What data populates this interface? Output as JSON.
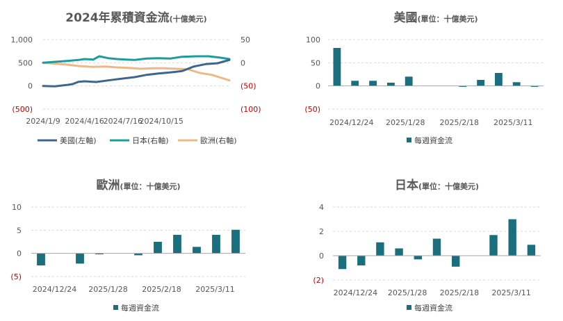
{
  "colors": {
    "us": "#3F6490",
    "jp": "#1C9C9A",
    "eu": "#EDB886",
    "bar": "#1A6E7E",
    "negative": "#C00000",
    "axis": "#555555",
    "grid": "#D9D9D9",
    "title": "#595959"
  },
  "chart_data": [
    {
      "type": "line",
      "title": "2024年累積資金流",
      "title_suffix": "(十億美元)",
      "left_axis": {
        "ylim": [
          -500,
          1000
        ],
        "ticks": [
          "1,000",
          "500",
          "0",
          "(500)"
        ],
        "tick_values": [
          1000,
          500,
          0,
          -500
        ]
      },
      "right_axis": {
        "ylim": [
          -100,
          50
        ],
        "ticks": [
          "50",
          "0",
          "(50)",
          "(100)"
        ],
        "tick_values": [
          50,
          0,
          -50,
          -100
        ]
      },
      "x_ticks": [
        "2024/1/9",
        "2024/4/16",
        "2024/7/16",
        "2024/10/15"
      ],
      "x_range": [
        "2024/1/9",
        "2025/3/25"
      ],
      "grid": "horizontal dashed",
      "legend": {
        "position": "bottom",
        "items": [
          "美國(左軸)",
          "日本(右軸)",
          "歐洲(右軸)"
        ]
      },
      "series": [
        {
          "name": "美國(左軸)",
          "axis": "left",
          "x": [
            "2024/1/9",
            "2024/2/6",
            "2024/3/5",
            "2024/3/19",
            "2024/4/2",
            "2024/4/16",
            "2024/5/14",
            "2024/6/11",
            "2024/7/16",
            "2024/8/13",
            "2024/9/10",
            "2024/10/8",
            "2024/11/5",
            "2024/12/3",
            "2024/12/31",
            "2025/1/28",
            "2025/2/25",
            "2025/3/25"
          ],
          "values": [
            0,
            -10,
            20,
            40,
            90,
            100,
            85,
            120,
            160,
            190,
            240,
            270,
            290,
            320,
            420,
            470,
            490,
            560
          ]
        },
        {
          "name": "日本(右軸)",
          "axis": "right",
          "x": [
            "2024/1/9",
            "2024/2/6",
            "2024/3/5",
            "2024/4/2",
            "2024/4/16",
            "2024/5/7",
            "2024/5/21",
            "2024/6/11",
            "2024/7/2",
            "2024/7/23",
            "2024/8/13",
            "2024/9/10",
            "2024/10/8",
            "2024/11/5",
            "2024/12/3",
            "2025/1/7",
            "2025/2/4",
            "2025/3/4",
            "2025/3/25"
          ],
          "values": [
            0,
            2,
            4,
            6,
            8,
            7,
            14,
            10,
            8,
            7,
            6,
            9,
            10,
            9,
            13,
            14,
            14,
            11,
            8
          ]
        },
        {
          "name": "歐洲(右軸)",
          "axis": "right",
          "x": [
            "2024/1/9",
            "2024/2/6",
            "2024/3/5",
            "2024/4/2",
            "2024/5/7",
            "2024/6/4",
            "2024/7/2",
            "2024/7/30",
            "2024/8/27",
            "2024/9/24",
            "2024/10/22",
            "2024/11/19",
            "2024/12/17",
            "2025/1/14",
            "2025/2/11",
            "2025/3/11",
            "2025/3/25"
          ],
          "values": [
            0,
            -2,
            -4,
            -7,
            -9,
            -8,
            -10,
            -11,
            -13,
            -12,
            -12,
            -13,
            -14,
            -22,
            -26,
            -34,
            -38
          ]
        }
      ]
    },
    {
      "type": "bar",
      "title": "美國",
      "title_suffix": "(單位：十億美元)",
      "ylim": [
        -50,
        100
      ],
      "y_ticks": [
        "100",
        "50",
        "0",
        "(50)"
      ],
      "y_tick_values": [
        100,
        50,
        0,
        -50
      ],
      "x_ticks": [
        "2024/12/24",
        "2025/1/28",
        "2025/2/18",
        "2025/3/11"
      ],
      "legend": {
        "position": "bottom",
        "items": [
          "每週資金流"
        ]
      },
      "series": [
        {
          "name": "每週資金流",
          "values": [
            82,
            11,
            11,
            7,
            20,
            0,
            0,
            -2,
            13,
            28,
            8,
            -2
          ]
        }
      ]
    },
    {
      "type": "bar",
      "title": "歐洲",
      "title_suffix": "(單位：十億美元)",
      "ylim": [
        -5,
        10
      ],
      "y_ticks": [
        "10",
        "5",
        "0",
        "(5)"
      ],
      "y_tick_values": [
        10,
        5,
        0,
        -5
      ],
      "x_ticks": [
        "2024/12/24",
        "2025/1/28",
        "2025/2/18",
        "2025/3/11"
      ],
      "legend": {
        "position": "bottom",
        "items": [
          "每週資金流"
        ]
      },
      "series": [
        {
          "name": "每週資金流",
          "values": [
            -2.6,
            0,
            -2.2,
            -0.2,
            0,
            -0.4,
            2.5,
            4.0,
            1.4,
            4.0,
            5.1
          ]
        }
      ]
    },
    {
      "type": "bar",
      "title": "日本",
      "title_suffix": "(單位：十億美元)",
      "ylim": [
        -2,
        4
      ],
      "y_ticks": [
        "4",
        "2",
        "0",
        "(2)"
      ],
      "y_tick_values": [
        4,
        2,
        0,
        -2
      ],
      "x_ticks": [
        "2024/12/24",
        "2025/1/28",
        "2025/2/18",
        "2025/3/11"
      ],
      "legend": {
        "position": "bottom",
        "items": [
          "每週資金流"
        ]
      },
      "series": [
        {
          "name": "每週資金流",
          "values": [
            -1.1,
            -0.8,
            1.1,
            0.6,
            -0.3,
            1.4,
            -0.9,
            0,
            1.7,
            3.0,
            0.9
          ]
        }
      ]
    }
  ]
}
